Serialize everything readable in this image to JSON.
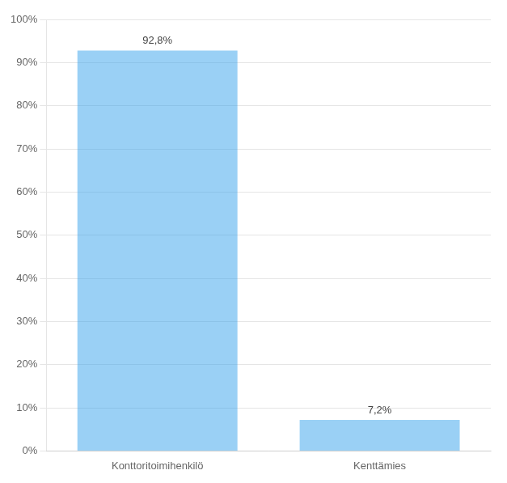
{
  "chart_data": {
    "type": "bar",
    "categories": [
      "Konttoritoimihenkilö",
      "Kenttämies"
    ],
    "values": [
      92.8,
      7.2
    ],
    "value_labels": [
      "92,8%",
      "7,2%"
    ],
    "data_labels": true,
    "ylim": [
      0,
      100
    ],
    "yticks": [
      {
        "value": 0,
        "label": "0%"
      },
      {
        "value": 10,
        "label": "10%"
      },
      {
        "value": 20,
        "label": "20%"
      },
      {
        "value": 30,
        "label": "30%"
      },
      {
        "value": 40,
        "label": "40%"
      },
      {
        "value": 50,
        "label": "50%"
      },
      {
        "value": 60,
        "label": "60%"
      },
      {
        "value": 70,
        "label": "70%"
      },
      {
        "value": 80,
        "label": "80%"
      },
      {
        "value": 90,
        "label": "90%"
      },
      {
        "value": 100,
        "label": "100%"
      }
    ],
    "grid": true
  }
}
